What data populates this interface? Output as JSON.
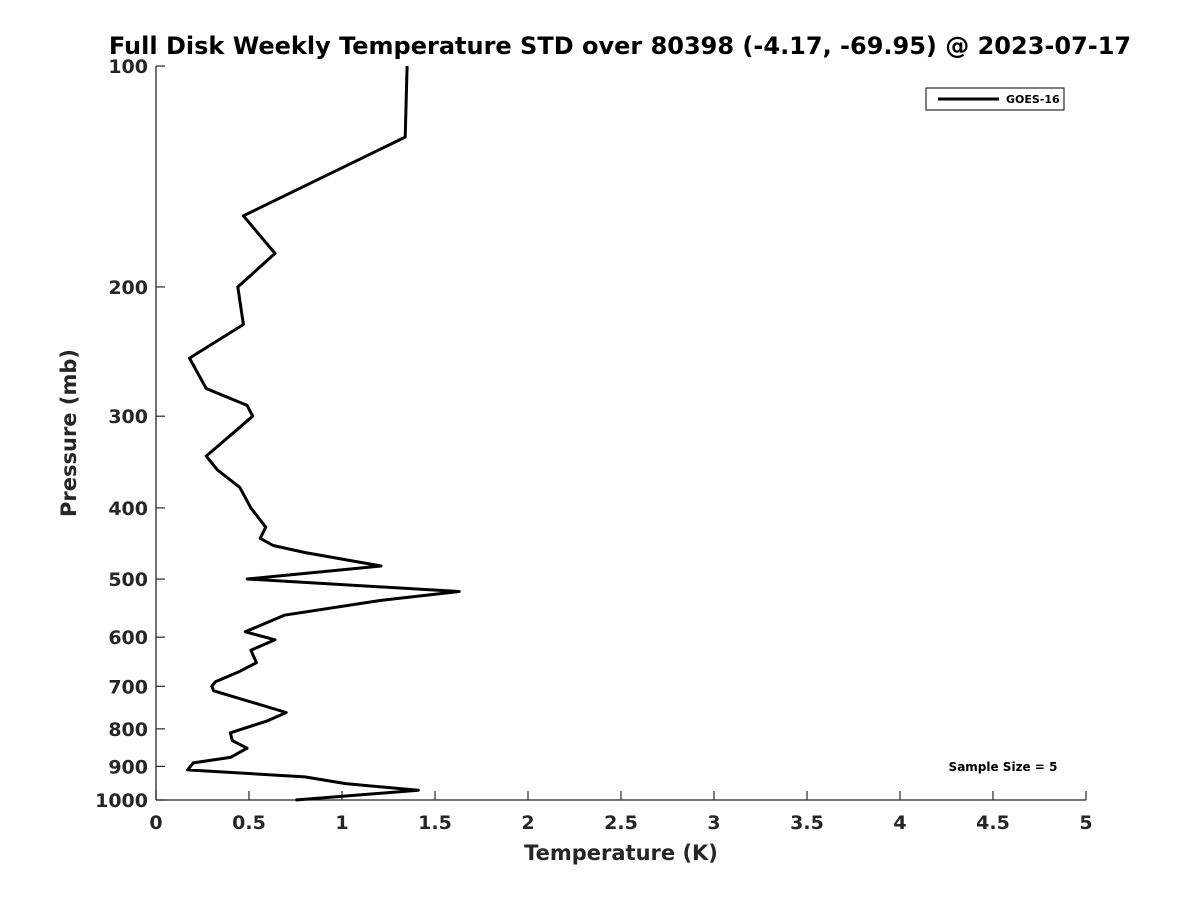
{
  "chart_data": {
    "type": "line",
    "title": "Full Disk Weekly Temperature STD over 80398 (-4.17, -69.95) @ 2023-07-17",
    "xlabel": "Temperature (K)",
    "ylabel": "Pressure (mb)",
    "xlim": [
      0,
      5
    ],
    "ylim": [
      100,
      1000
    ],
    "yscale": "log",
    "yreversed": true,
    "grid": false,
    "legend_position": "top-right",
    "x_ticks": [
      0,
      0.5,
      1,
      1.5,
      2,
      2.5,
      3,
      3.5,
      4,
      4.5,
      5
    ],
    "x_tick_labels": [
      "0",
      "0.5",
      "1",
      "1.5",
      "2",
      "2.5",
      "3",
      "3.5",
      "4",
      "4.5",
      "5"
    ],
    "y_ticks": [
      100,
      200,
      300,
      400,
      500,
      600,
      700,
      800,
      900,
      1000
    ],
    "y_tick_labels": [
      "100",
      "200",
      "300",
      "400",
      "500",
      "600",
      "700",
      "800",
      "900",
      "1000"
    ],
    "series": [
      {
        "name": "GOES-16",
        "color": "#000000",
        "points": [
          [
            1.35,
            100
          ],
          [
            1.34,
            125
          ],
          [
            0.47,
            160
          ],
          [
            0.64,
            180
          ],
          [
            0.44,
            200
          ],
          [
            0.47,
            225
          ],
          [
            0.18,
            250
          ],
          [
            0.27,
            275
          ],
          [
            0.49,
            290
          ],
          [
            0.52,
            300
          ],
          [
            0.27,
            340
          ],
          [
            0.33,
            355
          ],
          [
            0.45,
            375
          ],
          [
            0.51,
            400
          ],
          [
            0.59,
            425
          ],
          [
            0.56,
            440
          ],
          [
            0.63,
            450
          ],
          [
            0.8,
            460
          ],
          [
            1.21,
            480
          ],
          [
            0.49,
            500
          ],
          [
            1.63,
            520
          ],
          [
            1.2,
            535
          ],
          [
            0.69,
            560
          ],
          [
            0.48,
            590
          ],
          [
            0.64,
            605
          ],
          [
            0.51,
            625
          ],
          [
            0.54,
            650
          ],
          [
            0.44,
            670
          ],
          [
            0.32,
            690
          ],
          [
            0.3,
            700
          ],
          [
            0.31,
            710
          ],
          [
            0.7,
            760
          ],
          [
            0.6,
            780
          ],
          [
            0.4,
            810
          ],
          [
            0.41,
            830
          ],
          [
            0.49,
            850
          ],
          [
            0.4,
            875
          ],
          [
            0.2,
            890
          ],
          [
            0.17,
            910
          ],
          [
            0.8,
            930
          ],
          [
            1.02,
            950
          ],
          [
            1.41,
            970
          ],
          [
            0.75,
            1000
          ]
        ]
      }
    ],
    "annotation": "Sample Size = 5"
  }
}
